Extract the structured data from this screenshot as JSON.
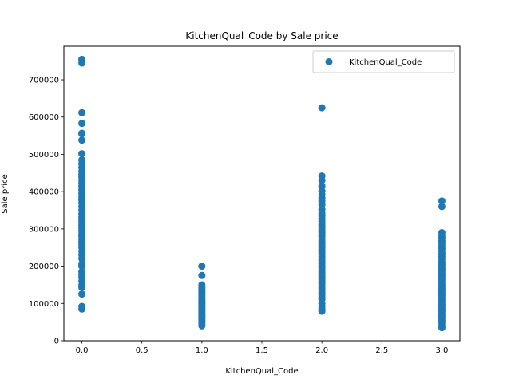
{
  "chart_data": {
    "type": "scatter",
    "title": "KitchenQual_Code by Sale price",
    "xlabel": "KitchenQual_Code",
    "ylabel": "Sale price",
    "xlim": [
      -0.15,
      3.15
    ],
    "ylim": [
      0,
      790000
    ],
    "x_ticks": [
      0.0,
      0.5,
      1.0,
      1.5,
      2.0,
      2.5,
      3.0
    ],
    "x_tick_labels": [
      "0.0",
      "0.5",
      "1.0",
      "1.5",
      "2.0",
      "2.5",
      "3.0"
    ],
    "y_ticks": [
      0,
      100000,
      200000,
      300000,
      400000,
      500000,
      600000,
      700000
    ],
    "y_tick_labels": [
      "0",
      "100000",
      "200000",
      "300000",
      "400000",
      "500000",
      "600000",
      "700000"
    ],
    "grid": false,
    "legend_position": "top-right",
    "series": [
      {
        "name": "KitchenQual_Code",
        "color": "#1f77b4",
        "points": [
          [
            0,
            755000
          ],
          [
            0,
            745000
          ],
          [
            0,
            611657
          ],
          [
            0,
            582933
          ],
          [
            0,
            556581
          ],
          [
            0,
            555000
          ],
          [
            0,
            538000
          ],
          [
            0,
            501837
          ],
          [
            0,
            485000
          ],
          [
            0,
            475000
          ],
          [
            0,
            465000
          ],
          [
            0,
            455000
          ],
          [
            0,
            446261
          ],
          [
            0,
            438780
          ],
          [
            0,
            430000
          ],
          [
            0,
            423000
          ],
          [
            0,
            415000
          ],
          [
            0,
            405000
          ],
          [
            0,
            395000
          ],
          [
            0,
            385000
          ],
          [
            0,
            377500
          ],
          [
            0,
            370000
          ],
          [
            0,
            360000
          ],
          [
            0,
            350000
          ],
          [
            0,
            340000
          ],
          [
            0,
            332000
          ],
          [
            0,
            325000
          ],
          [
            0,
            318000
          ],
          [
            0,
            310000
          ],
          [
            0,
            303000
          ],
          [
            0,
            295000
          ],
          [
            0,
            287000
          ],
          [
            0,
            280000
          ],
          [
            0,
            272000
          ],
          [
            0,
            265000
          ],
          [
            0,
            258000
          ],
          [
            0,
            250000
          ],
          [
            0,
            240000
          ],
          [
            0,
            230000
          ],
          [
            0,
            220000
          ],
          [
            0,
            206000
          ],
          [
            0,
            200000
          ],
          [
            0,
            185000
          ],
          [
            0,
            178000
          ],
          [
            0,
            170000
          ],
          [
            0,
            160000
          ],
          [
            0,
            150000
          ],
          [
            0,
            143000
          ],
          [
            0,
            125000
          ],
          [
            0,
            92000
          ],
          [
            0,
            85000
          ],
          [
            1,
            200000
          ],
          [
            1,
            175000
          ],
          [
            1,
            150000
          ],
          [
            1,
            142000
          ],
          [
            1,
            137000
          ],
          [
            1,
            132000
          ],
          [
            1,
            128000
          ],
          [
            1,
            124000
          ],
          [
            1,
            119000
          ],
          [
            1,
            115000
          ],
          [
            1,
            110000
          ],
          [
            1,
            106000
          ],
          [
            1,
            102000
          ],
          [
            1,
            98000
          ],
          [
            1,
            94000
          ],
          [
            1,
            90000
          ],
          [
            1,
            86000
          ],
          [
            1,
            82000
          ],
          [
            1,
            78000
          ],
          [
            1,
            74000
          ],
          [
            1,
            70000
          ],
          [
            1,
            66000
          ],
          [
            1,
            62000
          ],
          [
            1,
            58000
          ],
          [
            1,
            54000
          ],
          [
            1,
            50000
          ],
          [
            1,
            45000
          ],
          [
            1,
            40000
          ],
          [
            2,
            625000
          ],
          [
            2,
            441929
          ],
          [
            2,
            430000
          ],
          [
            2,
            415000
          ],
          [
            2,
            402000
          ],
          [
            2,
            392000
          ],
          [
            2,
            383000
          ],
          [
            2,
            375000
          ],
          [
            2,
            365000
          ],
          [
            2,
            352000
          ],
          [
            2,
            342000
          ],
          [
            2,
            335000
          ],
          [
            2,
            328000
          ],
          [
            2,
            321000
          ],
          [
            2,
            315000
          ],
          [
            2,
            309000
          ],
          [
            2,
            303000
          ],
          [
            2,
            297000
          ],
          [
            2,
            291000
          ],
          [
            2,
            285000
          ],
          [
            2,
            279000
          ],
          [
            2,
            273000
          ],
          [
            2,
            267000
          ],
          [
            2,
            261000
          ],
          [
            2,
            255000
          ],
          [
            2,
            249000
          ],
          [
            2,
            243000
          ],
          [
            2,
            237000
          ],
          [
            2,
            231000
          ],
          [
            2,
            225000
          ],
          [
            2,
            219000
          ],
          [
            2,
            213000
          ],
          [
            2,
            207000
          ],
          [
            2,
            201000
          ],
          [
            2,
            195000
          ],
          [
            2,
            189000
          ],
          [
            2,
            183000
          ],
          [
            2,
            177000
          ],
          [
            2,
            171000
          ],
          [
            2,
            165000
          ],
          [
            2,
            159000
          ],
          [
            2,
            153000
          ],
          [
            2,
            147000
          ],
          [
            2,
            141000
          ],
          [
            2,
            135000
          ],
          [
            2,
            129000
          ],
          [
            2,
            123000
          ],
          [
            2,
            117000
          ],
          [
            2,
            111000
          ],
          [
            2,
            100000
          ],
          [
            2,
            92000
          ],
          [
            2,
            85000
          ],
          [
            2,
            79000
          ],
          [
            3,
            375000
          ],
          [
            3,
            360000
          ],
          [
            3,
            290000
          ],
          [
            3,
            282000
          ],
          [
            3,
            275000
          ],
          [
            3,
            268000
          ],
          [
            3,
            261000
          ],
          [
            3,
            254000
          ],
          [
            3,
            247000
          ],
          [
            3,
            240000
          ],
          [
            3,
            233000
          ],
          [
            3,
            226000
          ],
          [
            3,
            219000
          ],
          [
            3,
            212000
          ],
          [
            3,
            205000
          ],
          [
            3,
            199000
          ],
          [
            3,
            193000
          ],
          [
            3,
            187000
          ],
          [
            3,
            181000
          ],
          [
            3,
            175000
          ],
          [
            3,
            169000
          ],
          [
            3,
            163000
          ],
          [
            3,
            157000
          ],
          [
            3,
            151000
          ],
          [
            3,
            145000
          ],
          [
            3,
            139000
          ],
          [
            3,
            133000
          ],
          [
            3,
            127000
          ],
          [
            3,
            121000
          ],
          [
            3,
            115000
          ],
          [
            3,
            109000
          ],
          [
            3,
            103000
          ],
          [
            3,
            97000
          ],
          [
            3,
            91000
          ],
          [
            3,
            85000
          ],
          [
            3,
            79000
          ],
          [
            3,
            73000
          ],
          [
            3,
            67000
          ],
          [
            3,
            61000
          ],
          [
            3,
            55000
          ],
          [
            3,
            48000
          ],
          [
            3,
            40000
          ],
          [
            3,
            35000
          ]
        ]
      }
    ]
  }
}
